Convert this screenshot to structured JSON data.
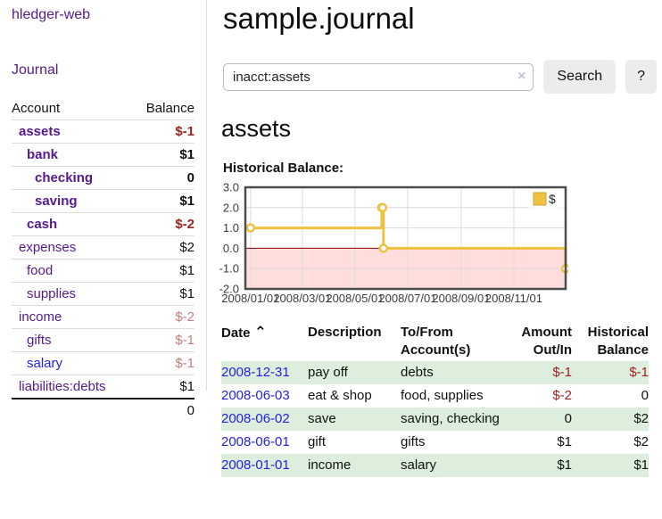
{
  "app": {
    "title": "hledger-web"
  },
  "colors": {
    "link_purple": "#551a8b",
    "link_blue": "#2323dd",
    "negative_strong": "#9d1f1f",
    "negative_soft": "#c08080",
    "row_shade_green": "#ddeedd",
    "chart_series_yellow": "#edc240",
    "chart_negative_region": "#ffdddd",
    "chart_zero_line": "#8b0000",
    "chart_grid": "#dcdcdc",
    "chart_border": "#4d4d4d",
    "button_bg": "#ececec",
    "clear_icon_lavender": "#c7c1dc"
  },
  "sidebar": {
    "journal_label": "Journal",
    "accounts_table": {
      "headers": {
        "account": "Account",
        "balance": "Balance"
      },
      "rows": [
        {
          "name": "assets",
          "balance": "$-1",
          "depth": 1,
          "bold": true,
          "neg": "strong"
        },
        {
          "name": "bank",
          "balance": "$1",
          "depth": 2,
          "bold": true,
          "neg": "none"
        },
        {
          "name": "checking",
          "balance": "0",
          "depth": 3,
          "bold": true,
          "neg": "none"
        },
        {
          "name": "saving",
          "balance": "$1",
          "depth": 3,
          "bold": true,
          "neg": "none"
        },
        {
          "name": "cash",
          "balance": "$-2",
          "depth": 2,
          "bold": true,
          "neg": "strong"
        },
        {
          "name": "expenses",
          "balance": "$2",
          "depth": 1,
          "bold": false,
          "neg": "none"
        },
        {
          "name": "food",
          "balance": "$1",
          "depth": 2,
          "bold": false,
          "neg": "none"
        },
        {
          "name": "supplies",
          "balance": "$1",
          "depth": 2,
          "bold": false,
          "neg": "none"
        },
        {
          "name": "income",
          "balance": "$-2",
          "depth": 1,
          "bold": false,
          "neg": "soft"
        },
        {
          "name": "gifts",
          "balance": "$-1",
          "depth": 2,
          "bold": false,
          "neg": "soft"
        },
        {
          "name": "salary",
          "balance": "$-1",
          "depth": 2,
          "bold": false,
          "neg": "soft",
          "blue": true
        },
        {
          "name": "liabilities:debts",
          "balance": "$1",
          "depth": 1,
          "bold": false,
          "neg": "none"
        }
      ],
      "total": "0"
    }
  },
  "main": {
    "title": "sample.journal",
    "search": {
      "value": "inacct:assets",
      "clear_icon": "×",
      "button_label": "Search",
      "help_label": "?"
    },
    "account_heading": "assets",
    "chart_label": "Historical Balance:"
  },
  "chart_data": {
    "type": "line",
    "title": "Historical Balance",
    "style": "steps-with-points",
    "legend": {
      "label": "$",
      "position": "top-right"
    },
    "ylim": [
      -2,
      3
    ],
    "xlim_days": [
      -6,
      365
    ],
    "grid": true,
    "y_ticks": [
      {
        "label": "3.0",
        "value": 3
      },
      {
        "label": "2.0",
        "value": 2
      },
      {
        "label": "1.0",
        "value": 1
      },
      {
        "label": "0.0",
        "value": 0
      },
      {
        "label": "-1.0",
        "value": -1
      },
      {
        "label": "-2.0",
        "value": -2
      }
    ],
    "x_ticks": [
      {
        "label": "2008/01/01",
        "day": 0
      },
      {
        "label": "2008/03/01",
        "day": 60
      },
      {
        "label": "2008/05/01",
        "day": 121
      },
      {
        "label": "2008/07/01",
        "day": 182
      },
      {
        "label": "2008/09/01",
        "day": 244
      },
      {
        "label": "2008/11/01",
        "day": 305
      }
    ],
    "series": [
      {
        "name": "$",
        "color": "#edc240",
        "points": [
          {
            "date": "2008-01-01",
            "day": 0,
            "value": 1
          },
          {
            "date": "2008-06-01",
            "day": 152,
            "value": 2
          },
          {
            "date": "2008-06-02",
            "day": 153,
            "value": 2
          },
          {
            "date": "2008-06-03",
            "day": 154,
            "value": 0
          },
          {
            "date": "2008-12-31",
            "day": 365,
            "value": -1
          }
        ]
      }
    ]
  },
  "transactions": {
    "headers": {
      "date": "Date",
      "sort_icon": "⌃",
      "description": "Description",
      "accounts": "To/From Account(s)",
      "amount": "Amount Out/In",
      "balance": "Historical Balance"
    },
    "rows": [
      {
        "date": "2008-12-31",
        "description": "pay off",
        "accounts": "debts",
        "amount": "$-1",
        "amount_neg": true,
        "balance": "$-1",
        "balance_neg": true
      },
      {
        "date": "2008-06-03",
        "description": "eat & shop",
        "accounts": "food, supplies",
        "amount": "$-2",
        "amount_neg": true,
        "balance": "0",
        "balance_neg": false
      },
      {
        "date": "2008-06-02",
        "description": "save",
        "accounts": "saving, checking",
        "amount": "0",
        "amount_neg": false,
        "balance": "$2",
        "balance_neg": false
      },
      {
        "date": "2008-06-01",
        "description": "gift",
        "accounts": "gifts",
        "amount": "$1",
        "amount_neg": false,
        "balance": "$2",
        "balance_neg": false
      },
      {
        "date": "2008-01-01",
        "description": "income",
        "accounts": "salary",
        "amount": "$1",
        "amount_neg": false,
        "balance": "$1",
        "balance_neg": false
      }
    ]
  }
}
